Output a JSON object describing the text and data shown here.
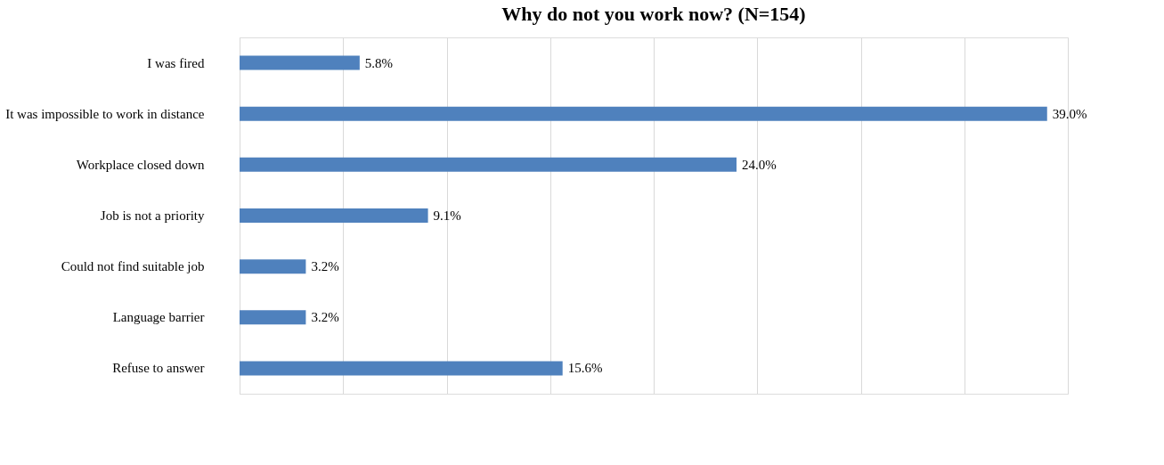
{
  "chart_data": {
    "type": "bar",
    "orientation": "horizontal",
    "title": "Why do not you work now? (N=154)",
    "categories": [
      "I was fired",
      "It was impossible to work in distance",
      "Workplace closed down",
      "Job is not a priority",
      "Could not find suitable job",
      "Language barrier",
      "Refuse to answer"
    ],
    "values": [
      5.8,
      39.0,
      24.0,
      9.1,
      3.2,
      3.2,
      15.6
    ],
    "value_labels": [
      "5.8%",
      "39.0%",
      "24.0%",
      "9.1%",
      "3.2%",
      "3.2%",
      "15.6%"
    ],
    "color": "#4f81bd",
    "xlim": [
      0,
      40
    ],
    "xticks": [
      {
        "value": 0,
        "label": null
      },
      {
        "value": 5,
        "label": null
      },
      {
        "value": 10,
        "label": null
      },
      {
        "value": 15,
        "label": null
      },
      {
        "value": 20,
        "label": null
      },
      {
        "value": 25,
        "label": null
      },
      {
        "value": 30,
        "label": null
      },
      {
        "value": 35,
        "label": null
      },
      {
        "value": 40,
        "label": null
      }
    ],
    "grid": "x"
  }
}
